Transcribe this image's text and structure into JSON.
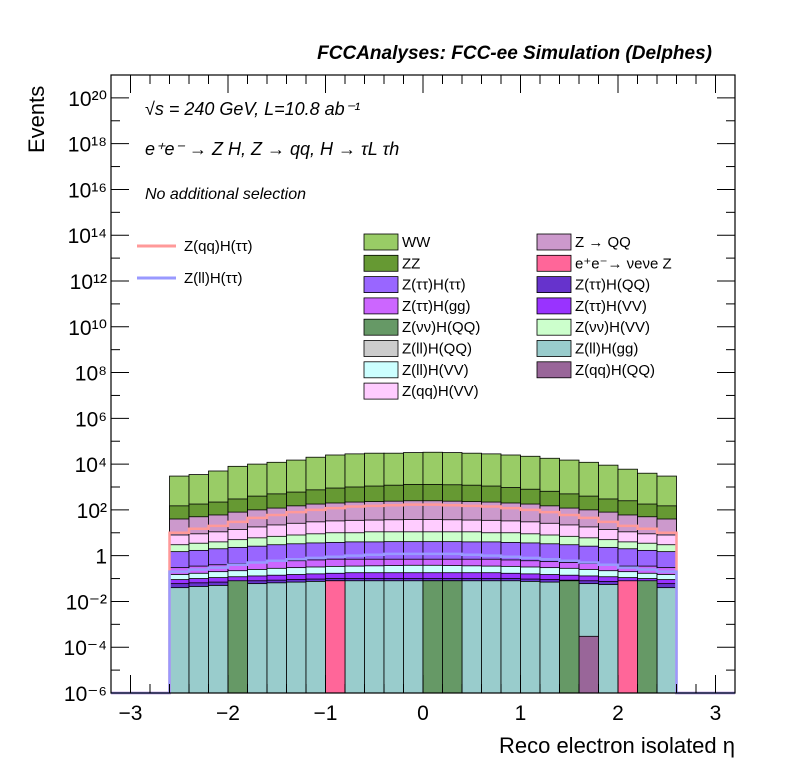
{
  "chart_data": {
    "type": "histogram-stacked",
    "title": "FCCAnalyses: FCC-ee Simulation (Delphes)",
    "annotations": [
      "√s = 240 GeV, L=10.8 ab⁻¹",
      "e⁺e⁻ → Z H, Z → qq, H → τL τh",
      "No additional selection"
    ],
    "xlabel": "Reco electron isolated η",
    "ylabel": "Events",
    "xlim": [
      -3.2,
      3.2
    ],
    "ylim": [
      1e-06,
      1e+21
    ],
    "log_y": true,
    "x_ticks": [
      "−3",
      "−2",
      "−1",
      "0",
      "1",
      "2",
      "3"
    ],
    "y_ticks": [
      "10⁻⁶",
      "10⁻⁴",
      "10⁻²",
      "1",
      "10²",
      "10⁴",
      "10⁶",
      "10⁸",
      "10¹⁰",
      "10¹²",
      "10¹⁴",
      "10¹⁶",
      "10¹⁸",
      "10²⁰"
    ],
    "bin_edges": [
      -2.6,
      -2.4,
      -2.2,
      -2.0,
      -1.8,
      -1.6,
      -1.4,
      -1.2,
      -1.0,
      -0.8,
      -0.6,
      -0.4,
      -0.2,
      0.0,
      0.2,
      0.4,
      0.6,
      0.8,
      1.0,
      1.2,
      1.4,
      1.6,
      1.8,
      2.0,
      2.2,
      2.4,
      2.6
    ],
    "legend_columns": [
      [
        "WW",
        "ZZ",
        "Z(ττ)H(ττ)",
        "Z(ττ)H(gg)",
        "Z(νν)H(QQ)",
        "Z(ll)H(QQ)",
        "Z(ll)H(VV)",
        "Z(qq)H(VV)"
      ],
      [
        "Z → QQ",
        "e⁺e⁻→ νeνe Z",
        "Z(ττ)H(QQ)",
        "Z(ττ)H(VV)",
        "Z(νν)H(VV)",
        "Z(ll)H(gg)",
        "Z(qq)H(QQ)"
      ]
    ],
    "stack_order_top_to_bottom": [
      "WW",
      "ZZ",
      "Z → QQ",
      "Z(qq)H(VV)",
      "Z(νν)H(VV)",
      "Z(ττ)H(ττ)",
      "Z(ττ)H(gg)",
      "Z(ll)H(VV)",
      "Z(ττ)H(VV)",
      "Z(ττ)H(QQ)",
      "Z(ll)H(gg)",
      "Z(qq)H(QQ)",
      "e⁺e⁻→ νeνe Z",
      "Z(νν)H(QQ)"
    ],
    "series": [
      {
        "name": "WW",
        "color": "#99cc66",
        "totals": [
          3000,
          3500,
          5000,
          8000,
          10000,
          12000,
          15000,
          20000,
          25000,
          28000,
          30000,
          30000,
          32000,
          33000,
          32000,
          30000,
          28000,
          25000,
          22000,
          18000,
          15000,
          12000,
          9000,
          6000,
          4000,
          3000
        ]
      },
      {
        "name": "ZZ",
        "color": "#669933",
        "totals": [
          150,
          180,
          220,
          300,
          400,
          500,
          600,
          750,
          900,
          1000,
          1100,
          1200,
          1300,
          1300,
          1250,
          1200,
          1100,
          950,
          800,
          650,
          500,
          400,
          300,
          250,
          180,
          150
        ]
      },
      {
        "name": "Z → QQ",
        "color": "#cc99cc",
        "totals": [
          40,
          50,
          60,
          80,
          100,
          120,
          150,
          180,
          200,
          220,
          230,
          240,
          250,
          250,
          240,
          230,
          220,
          200,
          180,
          150,
          120,
          100,
          80,
          60,
          50,
          40
        ]
      },
      {
        "name": "Z(qq)H(VV)",
        "color": "#ffccff",
        "totals": [
          8,
          9,
          11,
          14,
          18,
          22,
          26,
          30,
          33,
          35,
          36,
          37,
          38,
          38,
          37,
          36,
          35,
          33,
          30,
          26,
          22,
          18,
          14,
          11,
          9,
          8
        ]
      },
      {
        "name": "Z(νν)H(VV)",
        "color": "#ccffcc",
        "totals": [
          3,
          3.5,
          4,
          5,
          6,
          7,
          8,
          9,
          10,
          10,
          11,
          11,
          11,
          11,
          11,
          11,
          10,
          10,
          9,
          8,
          7,
          6,
          5,
          4,
          3.5,
          3
        ]
      },
      {
        "name": "Z(ττ)H(ττ)",
        "color": "#9966ff",
        "totals": [
          1.5,
          1.7,
          2,
          2.3,
          2.6,
          3,
          3.3,
          3.6,
          3.8,
          4,
          4,
          4.1,
          4.1,
          4.1,
          4.1,
          4,
          4,
          3.8,
          3.6,
          3.3,
          3,
          2.6,
          2.3,
          2,
          1.7,
          1.5
        ]
      },
      {
        "name": "Z(ττ)H(gg)",
        "color": "#cc66ff",
        "totals": [
          0.3,
          0.35,
          0.4,
          0.45,
          0.5,
          0.55,
          0.6,
          0.65,
          0.7,
          0.7,
          0.7,
          0.7,
          0.7,
          0.7,
          0.7,
          0.7,
          0.7,
          0.65,
          0.6,
          0.55,
          0.5,
          0.45,
          0.4,
          0.35,
          0.35,
          0.3
        ]
      },
      {
        "name": "Z(ll)H(VV)",
        "color": "#ccffff",
        "totals": [
          0.15,
          0.17,
          0.2,
          0.22,
          0.25,
          0.28,
          0.3,
          0.32,
          0.34,
          0.35,
          0.36,
          0.37,
          0.38,
          0.38,
          0.37,
          0.36,
          0.35,
          0.34,
          0.32,
          0.3,
          0.28,
          0.25,
          0.22,
          0.2,
          0.17,
          0.15
        ]
      },
      {
        "name": "Z(ττ)H(VV)",
        "color": "#9933ff",
        "totals": [
          0.09,
          0.1,
          0.11,
          0.12,
          0.13,
          0.14,
          0.15,
          0.16,
          0.17,
          0.18,
          0.18,
          0.18,
          0.18,
          0.18,
          0.18,
          0.18,
          0.18,
          0.17,
          0.16,
          0.15,
          0.14,
          0.13,
          0.12,
          0.11,
          0.1,
          0.09
        ]
      },
      {
        "name": "Z(ττ)H(QQ)",
        "color": "#6633cc",
        "totals": [
          0.06,
          0.065,
          0.07,
          0.075,
          0.08,
          0.085,
          0.09,
          0.095,
          0.1,
          0.1,
          0.1,
          0.1,
          0.1,
          0.1,
          0.1,
          0.1,
          0.1,
          0.1,
          0.095,
          0.09,
          0.085,
          0.08,
          0.075,
          0.07,
          0.065,
          0.06
        ]
      },
      {
        "name": "Z(ll)H(gg)",
        "color": "#99cccc",
        "totals": [
          0.04,
          0.045,
          0.05,
          0.055,
          0.06,
          0.065,
          0.07,
          0.075,
          0.08,
          0.08,
          0.08,
          0.08,
          0.08,
          0.08,
          0.08,
          0.08,
          0.08,
          0.08,
          0.075,
          0.07,
          0.065,
          0.06,
          0.055,
          0.05,
          0.045,
          0.04
        ]
      },
      {
        "name": "Z(qq)H(QQ)",
        "color": "#996699",
        "totals": [
          0,
          0,
          0,
          0,
          0,
          0,
          0,
          0,
          0,
          0,
          0,
          0,
          0,
          0,
          0,
          0,
          0,
          0,
          0,
          0,
          0,
          0.0003,
          0,
          0,
          0,
          0
        ]
      },
      {
        "name": "e⁺e⁻→ νeνe Z",
        "color": "#ff6699",
        "totals": [
          0,
          0,
          0,
          0,
          0,
          0,
          0,
          0,
          0.08,
          0,
          0,
          0,
          0,
          0,
          0,
          0,
          0,
          0,
          0,
          0,
          0,
          0,
          0,
          0.08,
          0,
          0
        ]
      },
      {
        "name": "Z(νν)H(QQ)",
        "color": "#669966",
        "totals": [
          0,
          0,
          0,
          0.08,
          0,
          0,
          0,
          0,
          0,
          0,
          0,
          0,
          0,
          0.08,
          0.08,
          0,
          0,
          0,
          0,
          0,
          0.08,
          0,
          0,
          0,
          0.08,
          0
        ]
      }
    ],
    "signal_lines": [
      {
        "name": "Z(qq)H(ττ)",
        "color": "#ff9999",
        "values": [
          10,
          15,
          20,
          30,
          45,
          60,
          80,
          100,
          120,
          140,
          150,
          160,
          170,
          170,
          160,
          150,
          140,
          120,
          100,
          80,
          60,
          45,
          30,
          20,
          15,
          10
        ]
      },
      {
        "name": "Z(ll)H(ττ)",
        "color": "#9999ff",
        "values": [
          0.2,
          0.25,
          0.3,
          0.4,
          0.5,
          0.6,
          0.7,
          0.8,
          0.9,
          1.0,
          1.1,
          1.2,
          1.2,
          1.2,
          1.2,
          1.1,
          1.0,
          0.9,
          0.8,
          0.7,
          0.6,
          0.5,
          0.4,
          0.3,
          0.25,
          0.2
        ]
      }
    ]
  }
}
